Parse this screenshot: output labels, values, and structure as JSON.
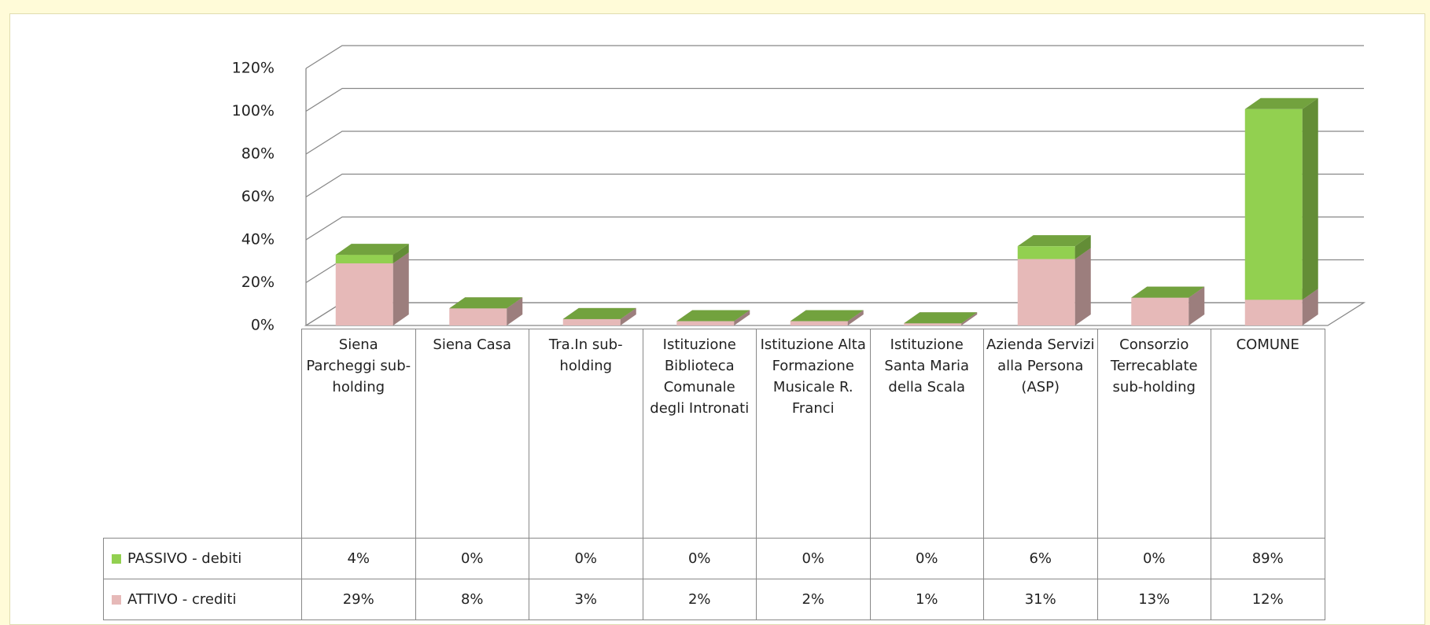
{
  "chart_data": {
    "type": "bar3d_stacked",
    "categories": [
      "Siena Parcheggi sub-holding",
      "Siena Casa",
      "Tra.In sub-holding",
      "Istituzione Biblioteca Comunale degli Intronati",
      "Istituzione Alta Formazione Musicale R. Franci",
      "Istituzione Santa Maria della Scala",
      "Azienda Servizi alla Persona (ASP)",
      "Consorzio Terrecablate sub-holding",
      "COMUNE"
    ],
    "series": [
      {
        "name": "ATTIVO - crediti",
        "color": "#e6b9b8",
        "values": [
          29,
          8,
          3,
          2,
          2,
          1,
          31,
          13,
          12
        ],
        "value_labels": [
          "29%",
          "8%",
          "3%",
          "2%",
          "2%",
          "1%",
          "31%",
          "13%",
          "12%"
        ]
      },
      {
        "name": "PASSIVO - debiti",
        "color": "#92d050",
        "values": [
          4,
          0,
          0,
          0,
          0,
          0,
          6,
          0,
          89
        ],
        "value_labels": [
          "4%",
          "0%",
          "0%",
          "0%",
          "0%",
          "0%",
          "6%",
          "0%",
          "89%"
        ]
      }
    ],
    "ylim": [
      0,
      120
    ],
    "yticks": [
      {
        "value": 0,
        "label": "0%"
      },
      {
        "value": 20,
        "label": "20%"
      },
      {
        "value": 40,
        "label": "40%"
      },
      {
        "value": 60,
        "label": "60%"
      },
      {
        "value": 80,
        "label": "80%"
      },
      {
        "value": 100,
        "label": "100%"
      },
      {
        "value": 120,
        "label": "120%"
      }
    ],
    "grid": true,
    "stacked": true,
    "data_table": true
  }
}
